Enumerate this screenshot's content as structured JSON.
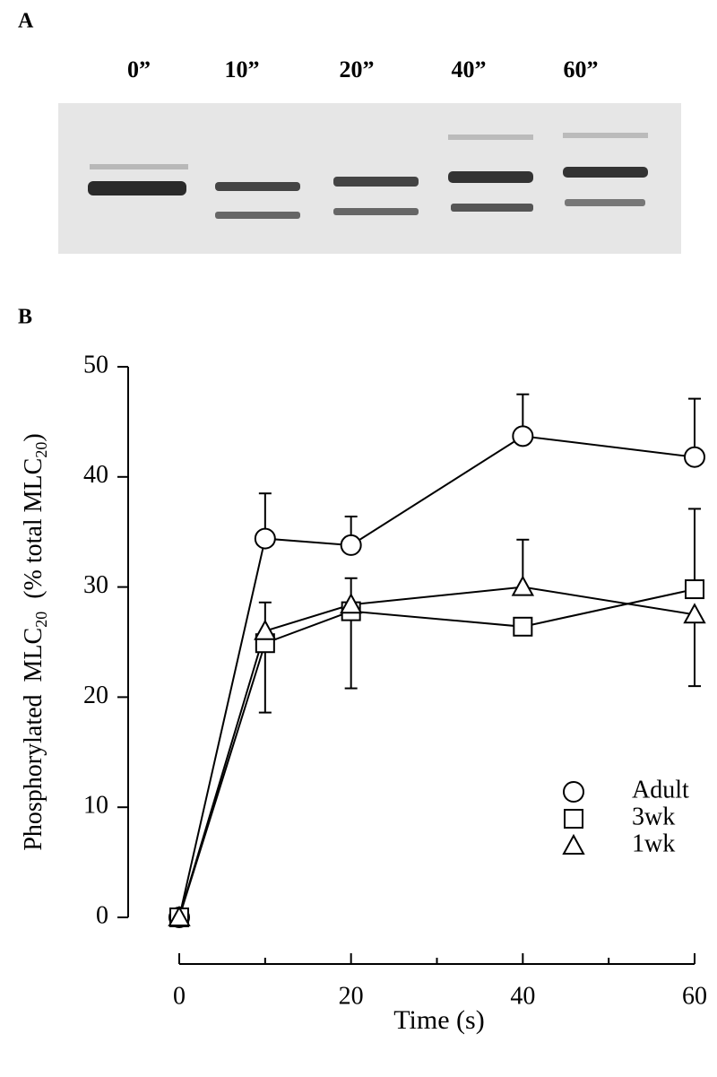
{
  "panel_a": {
    "label": "A",
    "lanes": [
      "0”",
      "10”",
      "20”",
      "40”",
      "60”"
    ]
  },
  "chart_data": {
    "type": "line",
    "panel_label": "B",
    "x": [
      0,
      10,
      20,
      40,
      60
    ],
    "xlim": [
      0,
      60
    ],
    "xticks": [
      0,
      20,
      40,
      60
    ],
    "xminorticks": [
      10,
      30,
      50
    ],
    "ylim": [
      0,
      50
    ],
    "yticks": [
      0,
      10,
      20,
      30,
      40,
      50
    ],
    "xlabel": "Time (s)",
    "ylabel": [
      "Phosphorylated  MLC",
      "20",
      "  (% total MLC",
      "20",
      ")"
    ],
    "legend": "bottom-right",
    "series": [
      {
        "name": "Adult",
        "color": "#000000",
        "marker": "circle",
        "values": [
          0,
          34.4,
          33.8,
          43.7,
          41.8
        ],
        "errors": [
          0,
          4.1,
          2.6,
          3.8,
          5.3
        ],
        "error_side": [
          "up",
          "up",
          "up",
          "up",
          "up"
        ]
      },
      {
        "name": "3wk",
        "color": "#000000",
        "marker": "square",
        "values": [
          0,
          24.9,
          27.8,
          26.4,
          29.8
        ],
        "errors": [
          0,
          6.3,
          7,
          0,
          7.3
        ],
        "error_side": [
          "down",
          "down",
          "down",
          "down",
          "up"
        ]
      },
      {
        "name": "1wk",
        "color": "#000000",
        "marker": "triangle",
        "values": [
          0,
          26,
          28.4,
          30,
          27.5
        ],
        "errors": [
          0,
          2.6,
          2.4,
          4.3,
          6.5
        ],
        "error_side": [
          "up",
          "up",
          "up",
          "up",
          "down"
        ]
      }
    ]
  }
}
